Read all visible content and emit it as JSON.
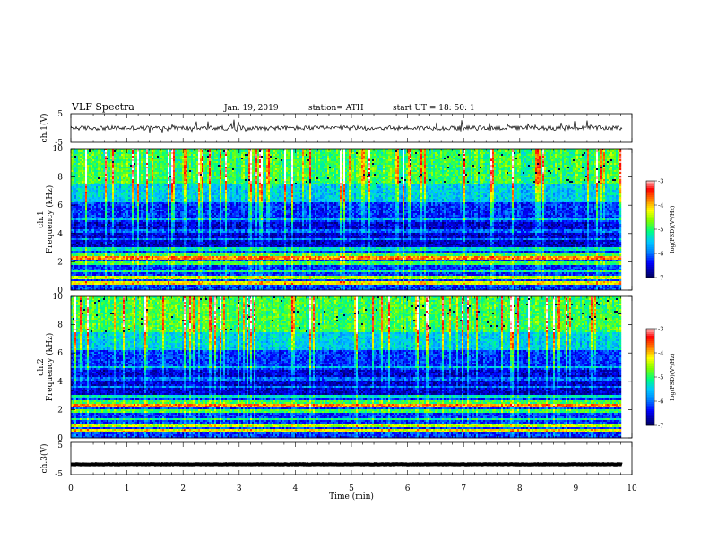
{
  "header": {
    "title": "VLF  Spectra",
    "date": "Jan. 19, 2019",
    "station": "station= ATH",
    "start": "start  UT  =    18: 50: 1"
  },
  "colors": {
    "spectrogram_scale": [
      "#000000",
      "#00008b",
      "#0000ff",
      "#0080ff",
      "#00c8ff",
      "#00ff80",
      "#80ff00",
      "#ffff00",
      "#ff8000",
      "#ff0000",
      "#ffffff"
    ],
    "waveform": "#000000"
  },
  "chart_data": [
    {
      "type": "line",
      "panel": "ch1-waveform",
      "ylabel": "ch.1(V)",
      "xlim": [
        0,
        10
      ],
      "ylim": [
        -5,
        5
      ],
      "yticks": [
        "5",
        "-5"
      ],
      "baseline_value": 0,
      "grid": false
    },
    {
      "type": "heatmap",
      "panel": "ch1-spectrogram",
      "ylabel": "ch.1\nFrequency  (kHz)",
      "ylabel_lines": [
        "ch.1",
        "Frequency  (kHz)"
      ],
      "xlim": [
        0,
        10
      ],
      "data_end_min": 9.83,
      "ylim": [
        0,
        10
      ],
      "yticks": [
        "0",
        "2",
        "4",
        "6",
        "8",
        "10"
      ],
      "colorbar": {
        "label": "log(PSD)(V²/Hz)",
        "range": [
          -7,
          -3
        ],
        "ticks": [
          "-3",
          "-4",
          "-5",
          "-6",
          "-7"
        ]
      }
    },
    {
      "type": "heatmap",
      "panel": "ch2-spectrogram",
      "ylabel_lines": [
        "ch.2",
        "Frequency  (kHz)"
      ],
      "xlim": [
        0,
        10
      ],
      "data_end_min": 9.83,
      "ylim": [
        0,
        10
      ],
      "yticks": [
        "0",
        "2",
        "4",
        "6",
        "8",
        "10"
      ],
      "colorbar": {
        "label": "log(PSD)(V²/Hz)",
        "range": [
          -7,
          -3
        ],
        "ticks": [
          "-3",
          "-4",
          "-5",
          "-6",
          "-7"
        ]
      }
    },
    {
      "type": "line",
      "panel": "ch3-waveform",
      "ylabel": "ch.3(V)",
      "xlim": [
        0,
        10
      ],
      "ylim": [
        -5,
        5
      ],
      "yticks": [
        "5",
        "-5"
      ],
      "baseline_value": -1.8,
      "grid": false
    }
  ],
  "xaxis": {
    "label": "Time  (min)",
    "ticks": [
      "0",
      "1",
      "2",
      "3",
      "4",
      "5",
      "6",
      "7",
      "8",
      "9",
      "10"
    ]
  }
}
